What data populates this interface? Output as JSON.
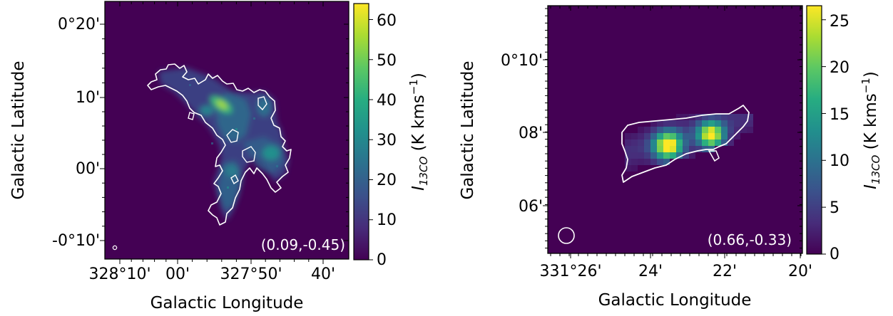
{
  "chart_data": [
    {
      "type": "heatmap",
      "title": "",
      "xlabel": "Galactic Longitude",
      "ylabel": "Galactic Latitude",
      "x_ticks": [
        "328°10'",
        "00'",
        "327°50'",
        "40'"
      ],
      "y_ticks": [
        "0°20'",
        "10'",
        "00'",
        "-0°10'"
      ],
      "annotation": "(0.09,-0.45)",
      "colorbar": {
        "label_main": "I",
        "label_sub": "13CO",
        "label_unit": " (K kms",
        "label_exp": "−1",
        "label_close": ")",
        "range": [
          0,
          64
        ],
        "ticks": [
          "0",
          "10",
          "20",
          "30",
          "40",
          "50",
          "60"
        ]
      },
      "background_color": "#440154",
      "contour_color": "#ffffff",
      "peak_value": 62
    },
    {
      "type": "heatmap",
      "title": "",
      "xlabel": "Galactic Longitude",
      "ylabel": "Galactic Latitude",
      "x_ticks": [
        "331°26'",
        "24'",
        "22'",
        "20'"
      ],
      "y_ticks": [
        "0°10'",
        "08'",
        "06'"
      ],
      "annotation": "(0.66,-0.33)",
      "colorbar": {
        "label_main": "I",
        "label_sub": "13CO",
        "label_unit": " (K kms",
        "label_exp": "−1",
        "label_close": ")",
        "range": [
          0,
          26.5
        ],
        "ticks": [
          "0",
          "5",
          "10",
          "15",
          "20",
          "25"
        ]
      },
      "background_color": "#440154",
      "contour_color": "#ffffff",
      "peak_value": 26
    }
  ]
}
